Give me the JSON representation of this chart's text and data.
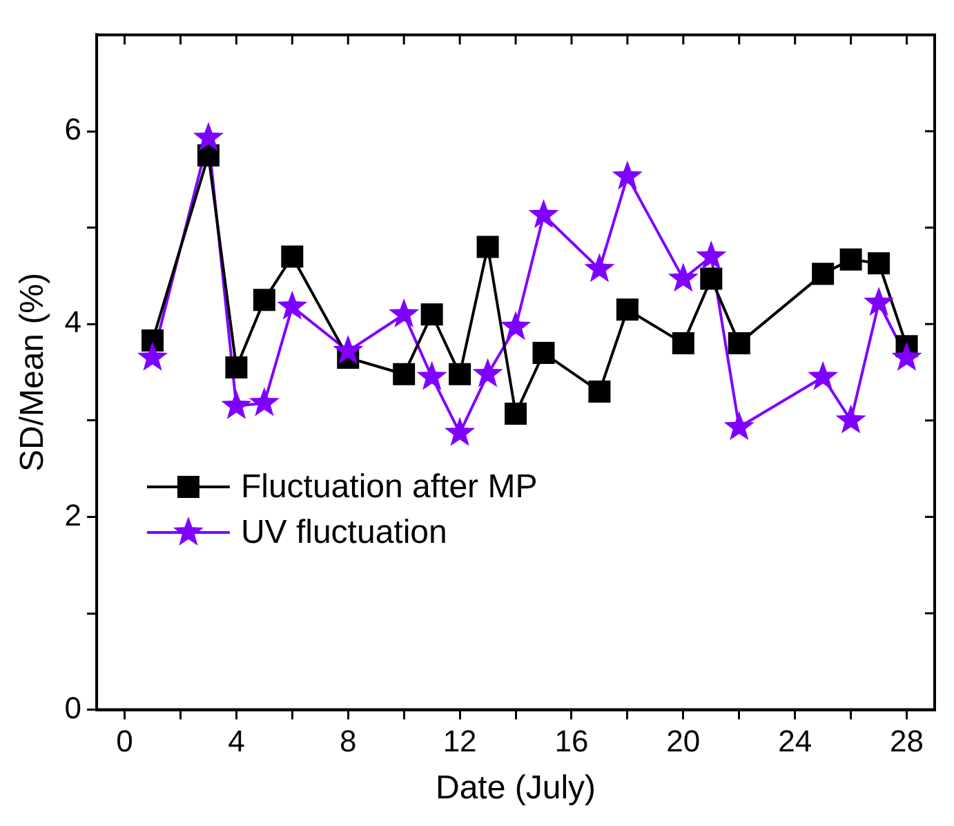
{
  "chart_data": {
    "type": "line",
    "xlabel": "Date (July)",
    "ylabel": "SD/Mean (%)",
    "xlim": [
      -1,
      29
    ],
    "xticks": [
      0,
      {
        "value": 2,
        "label": null
      },
      4,
      {
        "value": 6,
        "label": null
      },
      8,
      {
        "value": 10,
        "label": null
      },
      12,
      {
        "value": 14,
        "label": null
      },
      16,
      {
        "value": 18,
        "label": null
      },
      20,
      {
        "value": 22,
        "label": null
      },
      24,
      {
        "value": 26,
        "label": null
      },
      28
    ],
    "ylim": [
      0,
      7
    ],
    "yticks": [
      0,
      {
        "value": 1,
        "label": null
      },
      2,
      {
        "value": 3,
        "label": null
      },
      4,
      {
        "value": 5,
        "label": null
      },
      6
    ],
    "grid": false,
    "legend": "left",
    "line_style": "solid",
    "x": [
      1,
      3,
      4,
      5,
      6,
      8,
      10,
      11,
      12,
      13,
      14,
      15,
      17,
      18,
      20,
      21,
      22,
      25,
      26,
      27,
      28
    ],
    "series": [
      {
        "name": "Fluctuation after MP",
        "color": "#000000",
        "marker": "square",
        "values": [
          3.83,
          5.75,
          3.55,
          4.25,
          4.7,
          3.65,
          3.48,
          4.1,
          3.48,
          4.8,
          3.07,
          3.7,
          3.3,
          4.15,
          3.8,
          4.47,
          3.8,
          4.52,
          4.67,
          4.63,
          3.77
        ]
      },
      {
        "name": "UV fluctuation",
        "color": "#7f00ff",
        "marker": "star",
        "values": [
          3.65,
          5.93,
          3.15,
          3.18,
          4.18,
          3.72,
          4.1,
          3.45,
          2.87,
          3.48,
          3.97,
          5.13,
          4.57,
          5.53,
          4.47,
          4.7,
          2.93,
          3.45,
          3.0,
          4.22,
          3.65
        ]
      }
    ]
  }
}
